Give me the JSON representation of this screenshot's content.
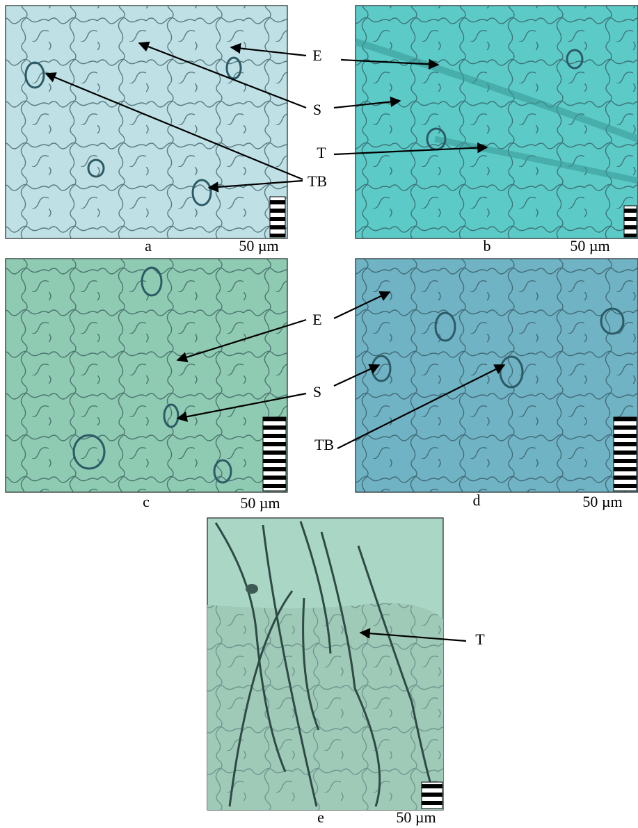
{
  "panels": [
    {
      "label": "a",
      "scale": "50 µm"
    },
    {
      "label": "b",
      "scale": "50 µm"
    },
    {
      "label": "c",
      "scale": "50 µm"
    },
    {
      "label": "d",
      "scale": "50 µm"
    },
    {
      "label": "e",
      "scale": "50 µm"
    }
  ],
  "annotations": [
    {
      "label": "E"
    },
    {
      "label": "S"
    },
    {
      "label": "T"
    },
    {
      "label": "TB"
    },
    {
      "label": "E"
    },
    {
      "label": "S"
    },
    {
      "label": "TB"
    },
    {
      "label": "T"
    }
  ]
}
